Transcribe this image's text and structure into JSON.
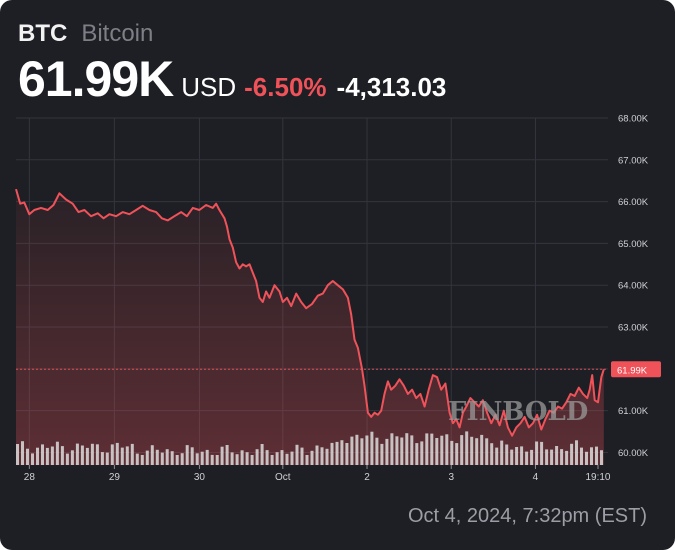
{
  "header": {
    "symbol": "BTC",
    "name": "Bitcoin",
    "price": "61.99K",
    "currency": "USD",
    "change_pct": "-6.50%",
    "change_abs": "-4,313.03"
  },
  "timestamp": "Oct 4, 2024, 7:32pm (EST)",
  "watermark": "FINBOLD",
  "colors": {
    "background": "#1e1f24",
    "line": "#f0525a",
    "negative": "#f0525a",
    "volume": "#dcdcdc",
    "grid": "#33353c",
    "axis_text": "#cfd1d6"
  },
  "chart_data": {
    "type": "area",
    "title": "",
    "xlabel": "",
    "ylabel": "",
    "ylim": [
      59.7,
      68.0
    ],
    "y_ticks": [
      "68.00K",
      "67.00K",
      "66.00K",
      "65.00K",
      "64.00K",
      "63.00K",
      "62.00K",
      "61.00K",
      "60.00K"
    ],
    "y_tick_values": [
      68,
      67,
      66,
      65,
      64,
      63,
      62,
      61,
      60
    ],
    "x_ticks": [
      "28",
      "29",
      "30",
      "Oct",
      "2",
      "3",
      "4",
      "19:10"
    ],
    "x_tick_values": [
      0.16,
      1.18,
      2.2,
      3.2,
      4.21,
      5.22,
      6.23,
      6.98
    ],
    "xlim": [
      0,
      7.1
    ],
    "current_value": 61.99,
    "current_label": "61.99K",
    "series": [
      {
        "values": [
          [
            0.0,
            66.3
          ],
          [
            0.05,
            65.95
          ],
          [
            0.1,
            65.98
          ],
          [
            0.16,
            65.7
          ],
          [
            0.22,
            65.8
          ],
          [
            0.3,
            65.85
          ],
          [
            0.38,
            65.8
          ],
          [
            0.45,
            65.92
          ],
          [
            0.52,
            66.2
          ],
          [
            0.6,
            66.05
          ],
          [
            0.68,
            65.95
          ],
          [
            0.75,
            65.75
          ],
          [
            0.82,
            65.8
          ],
          [
            0.9,
            65.65
          ],
          [
            0.98,
            65.72
          ],
          [
            1.05,
            65.6
          ],
          [
            1.12,
            65.7
          ],
          [
            1.2,
            65.65
          ],
          [
            1.28,
            65.75
          ],
          [
            1.36,
            65.7
          ],
          [
            1.44,
            65.8
          ],
          [
            1.52,
            65.9
          ],
          [
            1.6,
            65.8
          ],
          [
            1.68,
            65.75
          ],
          [
            1.75,
            65.6
          ],
          [
            1.82,
            65.55
          ],
          [
            1.9,
            65.65
          ],
          [
            1.98,
            65.75
          ],
          [
            2.05,
            65.65
          ],
          [
            2.12,
            65.85
          ],
          [
            2.2,
            65.8
          ],
          [
            2.28,
            65.92
          ],
          [
            2.36,
            65.85
          ],
          [
            2.4,
            65.95
          ],
          [
            2.44,
            65.8
          ],
          [
            2.5,
            65.6
          ],
          [
            2.53,
            65.4
          ],
          [
            2.56,
            65.1
          ],
          [
            2.6,
            64.9
          ],
          [
            2.64,
            64.55
          ],
          [
            2.68,
            64.4
          ],
          [
            2.72,
            64.5
          ],
          [
            2.76,
            64.45
          ],
          [
            2.8,
            64.5
          ],
          [
            2.84,
            64.3
          ],
          [
            2.88,
            64.1
          ],
          [
            2.92,
            63.7
          ],
          [
            2.96,
            63.6
          ],
          [
            3.0,
            63.85
          ],
          [
            3.04,
            63.7
          ],
          [
            3.1,
            64.0
          ],
          [
            3.16,
            63.85
          ],
          [
            3.2,
            63.6
          ],
          [
            3.25,
            63.7
          ],
          [
            3.3,
            63.5
          ],
          [
            3.36,
            63.8
          ],
          [
            3.42,
            63.6
          ],
          [
            3.48,
            63.45
          ],
          [
            3.55,
            63.55
          ],
          [
            3.62,
            63.75
          ],
          [
            3.68,
            63.8
          ],
          [
            3.74,
            64.0
          ],
          [
            3.8,
            64.1
          ],
          [
            3.86,
            64.0
          ],
          [
            3.92,
            63.9
          ],
          [
            3.98,
            63.7
          ],
          [
            4.02,
            63.3
          ],
          [
            4.06,
            62.7
          ],
          [
            4.1,
            62.5
          ],
          [
            4.15,
            62.0
          ],
          [
            4.18,
            61.6
          ],
          [
            4.22,
            60.95
          ],
          [
            4.26,
            60.85
          ],
          [
            4.3,
            60.95
          ],
          [
            4.34,
            60.9
          ],
          [
            4.38,
            61.0
          ],
          [
            4.42,
            61.4
          ],
          [
            4.46,
            61.7
          ],
          [
            4.5,
            61.5
          ],
          [
            4.55,
            61.6
          ],
          [
            4.6,
            61.75
          ],
          [
            4.65,
            61.6
          ],
          [
            4.7,
            61.4
          ],
          [
            4.75,
            61.5
          ],
          [
            4.8,
            61.3
          ],
          [
            4.85,
            61.4
          ],
          [
            4.9,
            61.1
          ],
          [
            4.95,
            61.5
          ],
          [
            5.0,
            61.85
          ],
          [
            5.05,
            61.8
          ],
          [
            5.1,
            61.5
          ],
          [
            5.15,
            61.65
          ],
          [
            5.2,
            60.95
          ],
          [
            5.24,
            60.7
          ],
          [
            5.28,
            60.8
          ],
          [
            5.32,
            60.6
          ],
          [
            5.36,
            60.95
          ],
          [
            5.4,
            61.1
          ],
          [
            5.45,
            61.3
          ],
          [
            5.5,
            61.2
          ],
          [
            5.55,
            61.1
          ],
          [
            5.6,
            61.25
          ],
          [
            5.65,
            60.95
          ],
          [
            5.7,
            60.7
          ],
          [
            5.75,
            60.9
          ],
          [
            5.8,
            60.65
          ],
          [
            5.85,
            61.0
          ],
          [
            5.9,
            60.6
          ],
          [
            5.95,
            60.4
          ],
          [
            6.0,
            60.6
          ],
          [
            6.05,
            60.7
          ],
          [
            6.1,
            60.85
          ],
          [
            6.15,
            60.6
          ],
          [
            6.2,
            60.7
          ],
          [
            6.25,
            60.9
          ],
          [
            6.3,
            60.55
          ],
          [
            6.35,
            60.8
          ],
          [
            6.4,
            61.0
          ],
          [
            6.45,
            60.95
          ],
          [
            6.5,
            61.1
          ],
          [
            6.55,
            61.05
          ],
          [
            6.6,
            61.2
          ],
          [
            6.65,
            61.4
          ],
          [
            6.7,
            61.35
          ],
          [
            6.75,
            61.55
          ],
          [
            6.8,
            61.4
          ],
          [
            6.85,
            61.3
          ],
          [
            6.88,
            61.5
          ],
          [
            6.91,
            61.85
          ],
          [
            6.94,
            61.25
          ],
          [
            6.98,
            61.2
          ],
          [
            7.02,
            61.8
          ],
          [
            7.05,
            61.99
          ]
        ]
      }
    ]
  }
}
